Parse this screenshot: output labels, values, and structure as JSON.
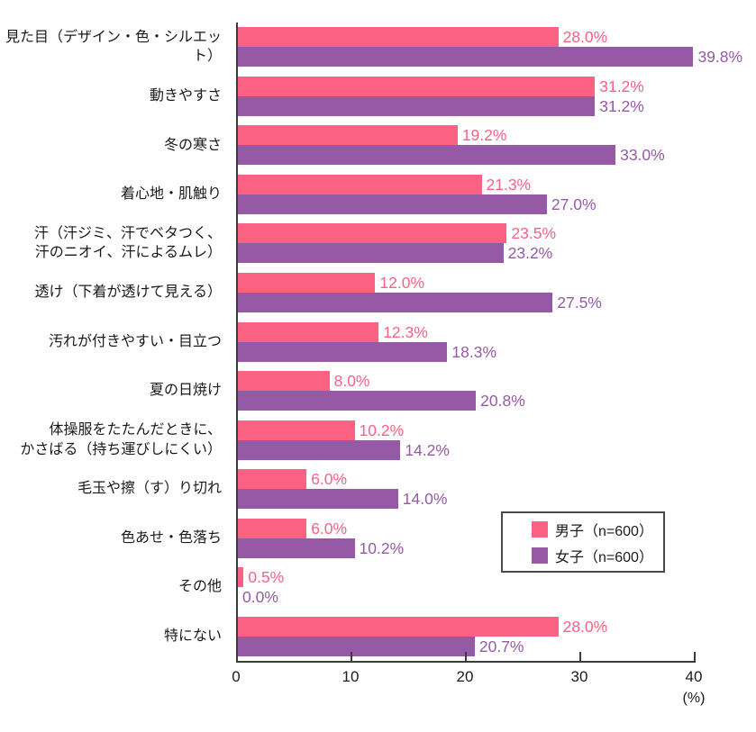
{
  "chart_data": {
    "type": "bar",
    "orientation": "horizontal",
    "title": "",
    "xlabel": "(%)",
    "xlim": [
      0,
      40
    ],
    "xticks": [
      0,
      10,
      20,
      30,
      40
    ],
    "value_suffix": "%",
    "grid": false,
    "legend_position": "inside-bottom-right",
    "categories": [
      "見た目（デザイン・色・シルエット）",
      "動きやすさ",
      "冬の寒さ",
      "着心地・肌触り",
      "汗（汗ジミ、汗でベタつく、\n汗のニオイ、汗によるムレ）",
      "透け（下着が透けて見える）",
      "汚れが付きやすい・目立つ",
      "夏の日焼け",
      "体操服をたたんだときに、\nかさばる（持ち運びしにくい）",
      "毛玉や擦（す）り切れ",
      "色あせ・色落ち",
      "その他",
      "特にない"
    ],
    "series": [
      {
        "name": "男子（n=600）",
        "color": "#FB6183",
        "values": [
          28.0,
          31.2,
          19.2,
          21.3,
          23.5,
          12.0,
          12.3,
          8.0,
          10.2,
          6.0,
          6.0,
          0.5,
          28.0
        ]
      },
      {
        "name": "女子（n=600）",
        "color": "#9659A6",
        "values": [
          39.8,
          31.2,
          33.0,
          27.0,
          23.2,
          27.5,
          18.3,
          20.8,
          14.2,
          14.0,
          10.2,
          0.0,
          20.7
        ]
      }
    ],
    "axis_color": "#3b3b3b"
  }
}
